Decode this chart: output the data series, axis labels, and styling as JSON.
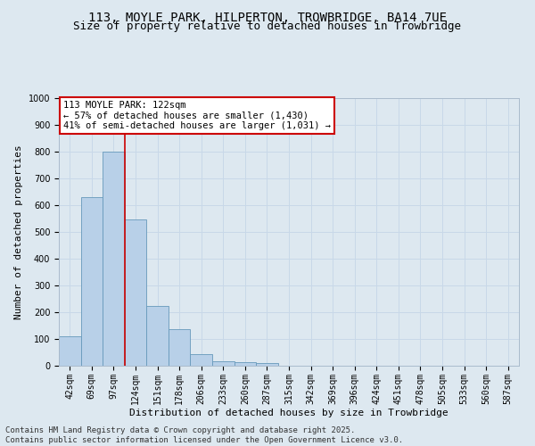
{
  "title_line1": "113, MOYLE PARK, HILPERTON, TROWBRIDGE, BA14 7UE",
  "title_line2": "Size of property relative to detached houses in Trowbridge",
  "xlabel": "Distribution of detached houses by size in Trowbridge",
  "ylabel": "Number of detached properties",
  "categories": [
    "42sqm",
    "69sqm",
    "97sqm",
    "124sqm",
    "151sqm",
    "178sqm",
    "206sqm",
    "233sqm",
    "260sqm",
    "287sqm",
    "315sqm",
    "342sqm",
    "369sqm",
    "396sqm",
    "424sqm",
    "451sqm",
    "478sqm",
    "505sqm",
    "533sqm",
    "560sqm",
    "587sqm"
  ],
  "values": [
    110,
    630,
    800,
    547,
    222,
    137,
    42,
    17,
    12,
    9,
    0,
    0,
    0,
    0,
    0,
    0,
    0,
    0,
    0,
    0,
    0
  ],
  "bar_color": "#b8d0e8",
  "bar_edge_color": "#6699bb",
  "vline_x": 2.5,
  "annotation_line1": "113 MOYLE PARK: 122sqm",
  "annotation_line2": "← 57% of detached houses are smaller (1,430)",
  "annotation_line3": "41% of semi-detached houses are larger (1,031) →",
  "annotation_box_color": "#cc0000",
  "annotation_bg": "#ffffff",
  "ylim": [
    0,
    1000
  ],
  "yticks": [
    0,
    100,
    200,
    300,
    400,
    500,
    600,
    700,
    800,
    900,
    1000
  ],
  "grid_color": "#c8d8e8",
  "bg_color": "#dde8f0",
  "footer_line1": "Contains HM Land Registry data © Crown copyright and database right 2025.",
  "footer_line2": "Contains public sector information licensed under the Open Government Licence v3.0.",
  "title_fontsize": 10,
  "subtitle_fontsize": 9,
  "axis_label_fontsize": 8,
  "tick_fontsize": 7,
  "annotation_fontsize": 7.5,
  "footer_fontsize": 6.5
}
